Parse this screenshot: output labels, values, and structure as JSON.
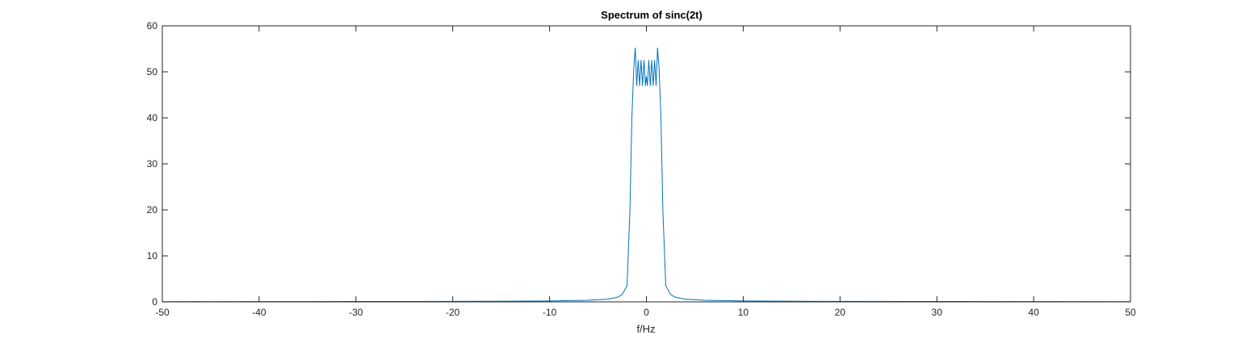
{
  "chart_data": {
    "type": "line",
    "title": "Spectrum of sinc(2t)",
    "xlabel": "f/Hz",
    "ylabel": "",
    "xlim": [
      -50,
      50
    ],
    "ylim": [
      0,
      60
    ],
    "xticks": [
      -50,
      -40,
      -30,
      -20,
      -10,
      0,
      10,
      20,
      30,
      40,
      50
    ],
    "yticks": [
      0,
      10,
      20,
      30,
      40,
      50,
      60
    ],
    "xtick_labels": [
      "-50",
      "-40",
      "-30",
      "-20",
      "-10",
      "0",
      "10",
      "20",
      "30",
      "40",
      "50"
    ],
    "ytick_labels": [
      "0",
      "10",
      "20",
      "30",
      "40",
      "50",
      "60"
    ],
    "grid": false,
    "series": [
      {
        "color": "#0072BD",
        "x": [
          -50,
          -40,
          -30,
          -20,
          -10,
          -6,
          -4,
          -3,
          -2.5,
          -2,
          -1.7,
          -1.5,
          -1.3,
          -1.15,
          -1.0,
          -0.85,
          -0.7,
          -0.55,
          -0.4,
          -0.25,
          -0.1,
          0.0,
          0.1,
          0.25,
          0.4,
          0.55,
          0.7,
          0.85,
          1.0,
          1.15,
          1.3,
          1.5,
          1.7,
          2,
          2.5,
          3,
          4,
          6,
          10,
          20,
          30,
          40,
          50
        ],
        "y": [
          0.05,
          0.06,
          0.08,
          0.1,
          0.2,
          0.35,
          0.6,
          1.0,
          1.6,
          3.5,
          20,
          40,
          51,
          55.2,
          47,
          52.5,
          47,
          52.5,
          47,
          52.5,
          47,
          49,
          47,
          52.5,
          47,
          52.5,
          47,
          52.5,
          47,
          55.2,
          51,
          40,
          20,
          3.5,
          1.6,
          1.0,
          0.6,
          0.35,
          0.2,
          0.1,
          0.08,
          0.06,
          0.05
        ]
      }
    ]
  }
}
